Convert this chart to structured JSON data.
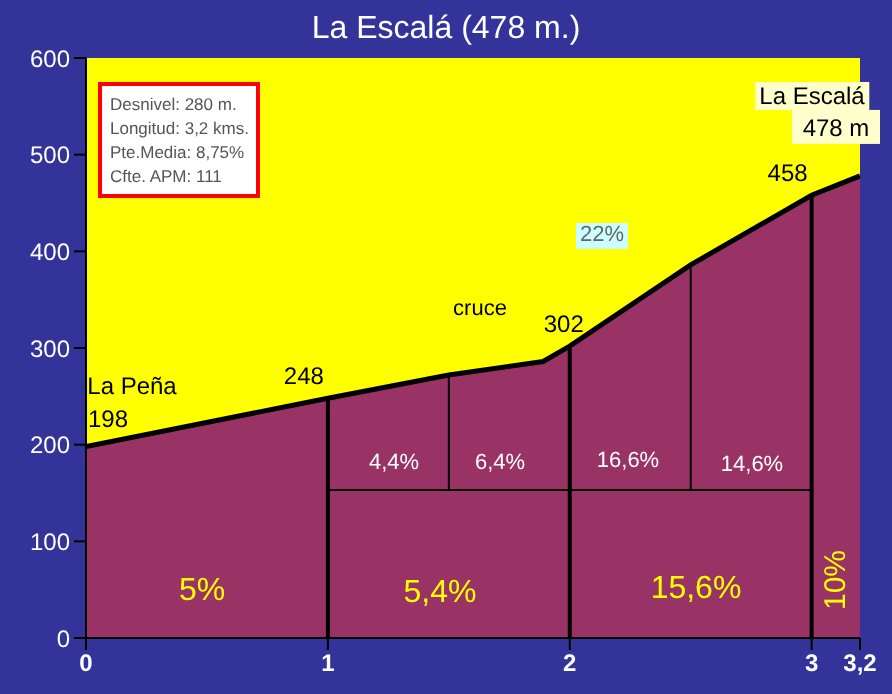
{
  "chart_data": {
    "type": "area",
    "title": "La Escalá (478 m.)",
    "x": [
      0,
      1,
      1.5,
      1.89,
      2,
      2.5,
      3,
      3.2
    ],
    "series": [
      {
        "color": "#993366",
        "values": [
          198,
          248,
          272,
          286,
          302,
          386,
          458,
          478
        ]
      }
    ],
    "xlim": [
      0,
      3.2
    ],
    "xticks": [
      0,
      1,
      2,
      3,
      {
        "value": 3.2,
        "label": "3,2"
      }
    ],
    "ylim": [
      0,
      600
    ],
    "yticks": [
      0,
      100,
      200,
      300,
      400,
      500,
      600
    ],
    "ref_lines": [
      {
        "axis": "x",
        "value": 1,
        "color": "#000000"
      },
      {
        "axis": "x",
        "value": 1.5,
        "color": "#000000"
      },
      {
        "axis": "x",
        "value": 2,
        "color": "#000000"
      },
      {
        "axis": "x",
        "value": 2.5,
        "color": "#000000"
      },
      {
        "axis": "x",
        "value": 3,
        "color": "#000000"
      },
      {
        "axis": "y",
        "value": 153,
        "color": "#000000"
      }
    ],
    "annotations": [
      "Desnivel:  280 m.",
      "Longitud: 3,2 kms.",
      "Pte.Media: 8,75%",
      "Cfte. APM: 111",
      "La Peña",
      "cruce",
      "22%",
      "La Escalá",
      "4,4%",
      "6,4%",
      "16,6%",
      "14,6%",
      "5%",
      "5,4%",
      "15,6%",
      "10%",
      {
        "text": "198",
        "x": 0,
        "y": 198
      },
      {
        "text": "248",
        "x": 1,
        "y": 248
      },
      {
        "text": "302",
        "x": 2,
        "y": 302
      },
      {
        "text": "458",
        "x": 3,
        "y": 458
      },
      {
        "text": "478 m",
        "x": 3.2,
        "y": 478
      }
    ]
  }
}
